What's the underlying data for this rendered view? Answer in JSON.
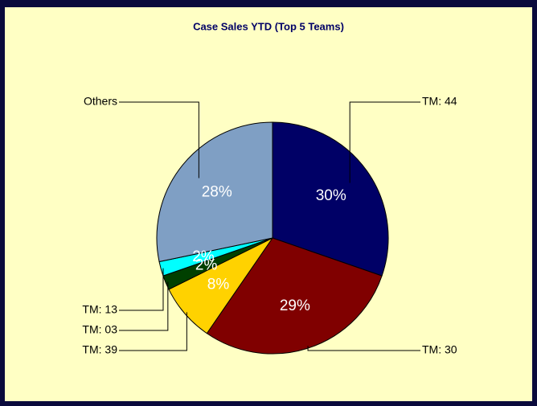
{
  "chart_data": {
    "type": "pie",
    "title": "Case Sales YTD  (Top 5 Teams)",
    "categories": [
      "TM: 44",
      "TM: 30",
      "TM: 39",
      "TM: 03",
      "TM: 13",
      "Others"
    ],
    "values": [
      30,
      29,
      8,
      2,
      2,
      28
    ],
    "value_labels": [
      "30%",
      "29%",
      "8%",
      "2%",
      "2%",
      "28%"
    ],
    "colors": [
      "#000066",
      "#800000",
      "#ffd200",
      "#004000",
      "#00ffff",
      "#7f9fc4"
    ]
  }
}
